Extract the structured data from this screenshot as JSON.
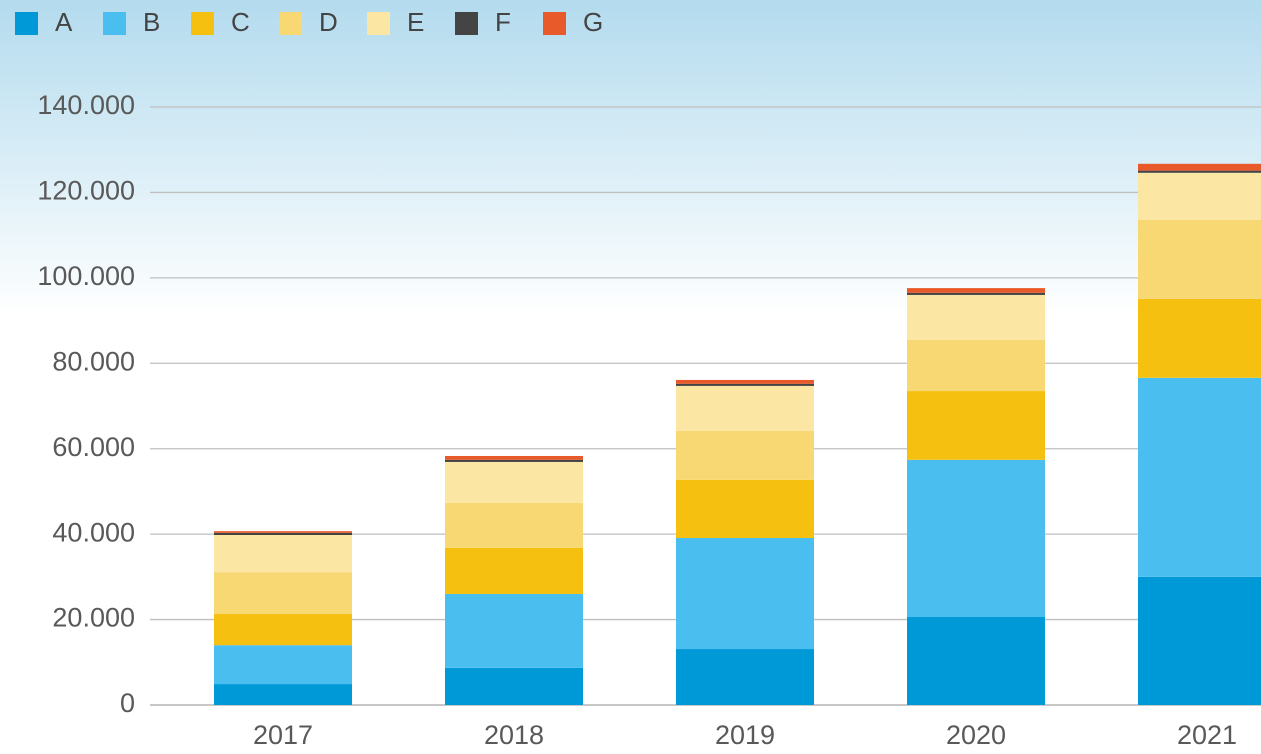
{
  "chart_data": {
    "type": "stacked_bar",
    "categories": [
      "2017",
      "2018",
      "2019",
      "2020",
      "2021"
    ],
    "series": [
      {
        "name": "A",
        "color": "#0099d8",
        "values": [
          4900,
          8700,
          13100,
          20600,
          30000
        ]
      },
      {
        "name": "B",
        "color": "#4bbef0",
        "values": [
          9100,
          17300,
          26000,
          36800,
          46600
        ]
      },
      {
        "name": "C",
        "color": "#f5c010",
        "values": [
          7300,
          10800,
          13600,
          16100,
          18500
        ]
      },
      {
        "name": "D",
        "color": "#f7d872",
        "values": [
          9800,
          10500,
          11500,
          12000,
          18500
        ]
      },
      {
        "name": "E",
        "color": "#fbe7a3",
        "values": [
          8700,
          9600,
          10500,
          10500,
          11000
        ]
      },
      {
        "name": "F",
        "color": "#444444",
        "values": [
          500,
          500,
          500,
          500,
          500
        ]
      },
      {
        "name": "G",
        "color": "#e85a2a",
        "values": [
          400,
          900,
          900,
          1100,
          1600
        ]
      }
    ],
    "ylim": [
      0,
      140000
    ],
    "yticks": [
      0,
      {
        "value": 20000,
        "label": "20.000"
      },
      {
        "value": 40000,
        "label": "40.000"
      },
      {
        "value": 60000,
        "label": "60.000"
      },
      {
        "value": 80000,
        "label": "80.000"
      },
      {
        "value": 100000,
        "label": "100.000"
      },
      {
        "value": 120000,
        "label": "120.000"
      },
      {
        "value": 140000,
        "label": "140.000"
      }
    ],
    "grid": true,
    "legend": "top"
  }
}
